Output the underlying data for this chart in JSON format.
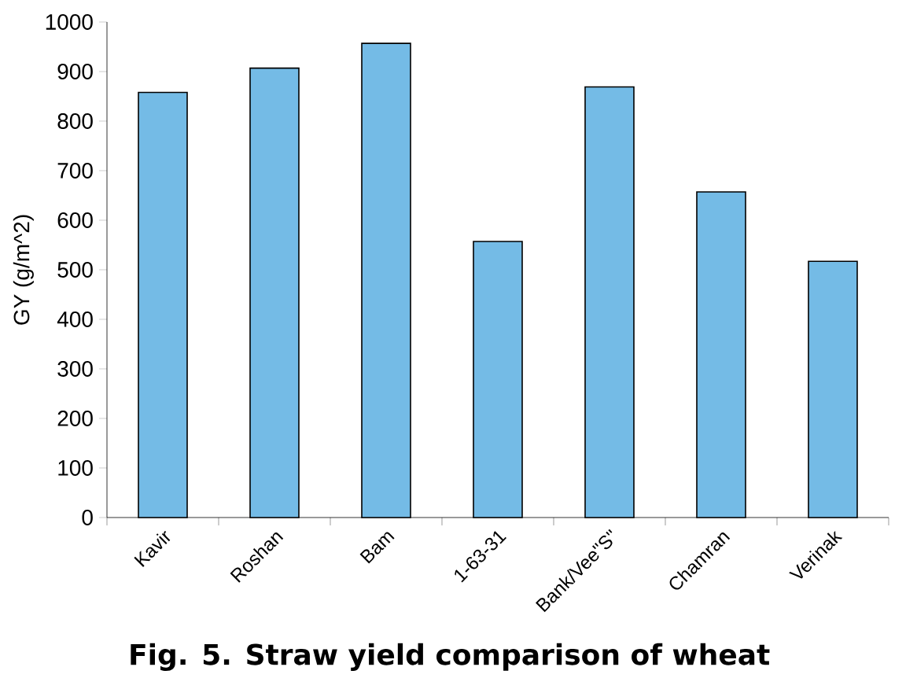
{
  "chart_data": {
    "type": "bar",
    "title": "Fig. 5. Straw yield comparison of wheat",
    "ylabel": "GY (g/m^2)",
    "categories": [
      "Kavir",
      "Roshan",
      "Bam",
      "1-63-31",
      "Bank/Vee\"S\"",
      "Chamran",
      "Verinak"
    ],
    "values": [
      858,
      907,
      957,
      557,
      869,
      657,
      517
    ],
    "color": "#74bbe6",
    "ylim": [
      0,
      1000
    ],
    "yticks": [
      0,
      100,
      200,
      300,
      400,
      500,
      600,
      700,
      800,
      900,
      1000
    ]
  }
}
